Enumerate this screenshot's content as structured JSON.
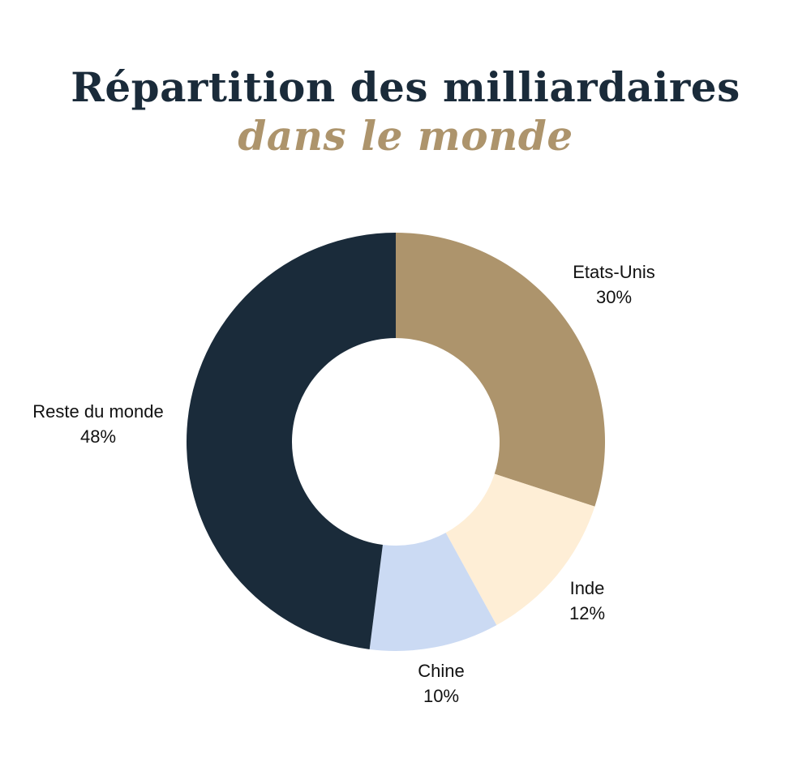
{
  "title": {
    "line1": "Répartition des milliardaires",
    "line2": "dans le monde"
  },
  "chart_data": {
    "type": "pie",
    "variant": "donut",
    "title": "Répartition des milliardaires dans le monde",
    "unit": "%",
    "slices": [
      {
        "label": "Etats-Unis",
        "value": 30,
        "value_label": "30%",
        "color": "#ad946c"
      },
      {
        "label": "Inde",
        "value": 12,
        "value_label": "12%",
        "color": "#feeed6"
      },
      {
        "label": "Chine",
        "value": 10,
        "value_label": "10%",
        "color": "#cbdaf3"
      },
      {
        "label": "Reste du monde",
        "value": 48,
        "value_label": "48%",
        "color": "#1a2b3a"
      }
    ],
    "start": "12 o'clock",
    "direction": "clockwise",
    "legend": "none"
  }
}
